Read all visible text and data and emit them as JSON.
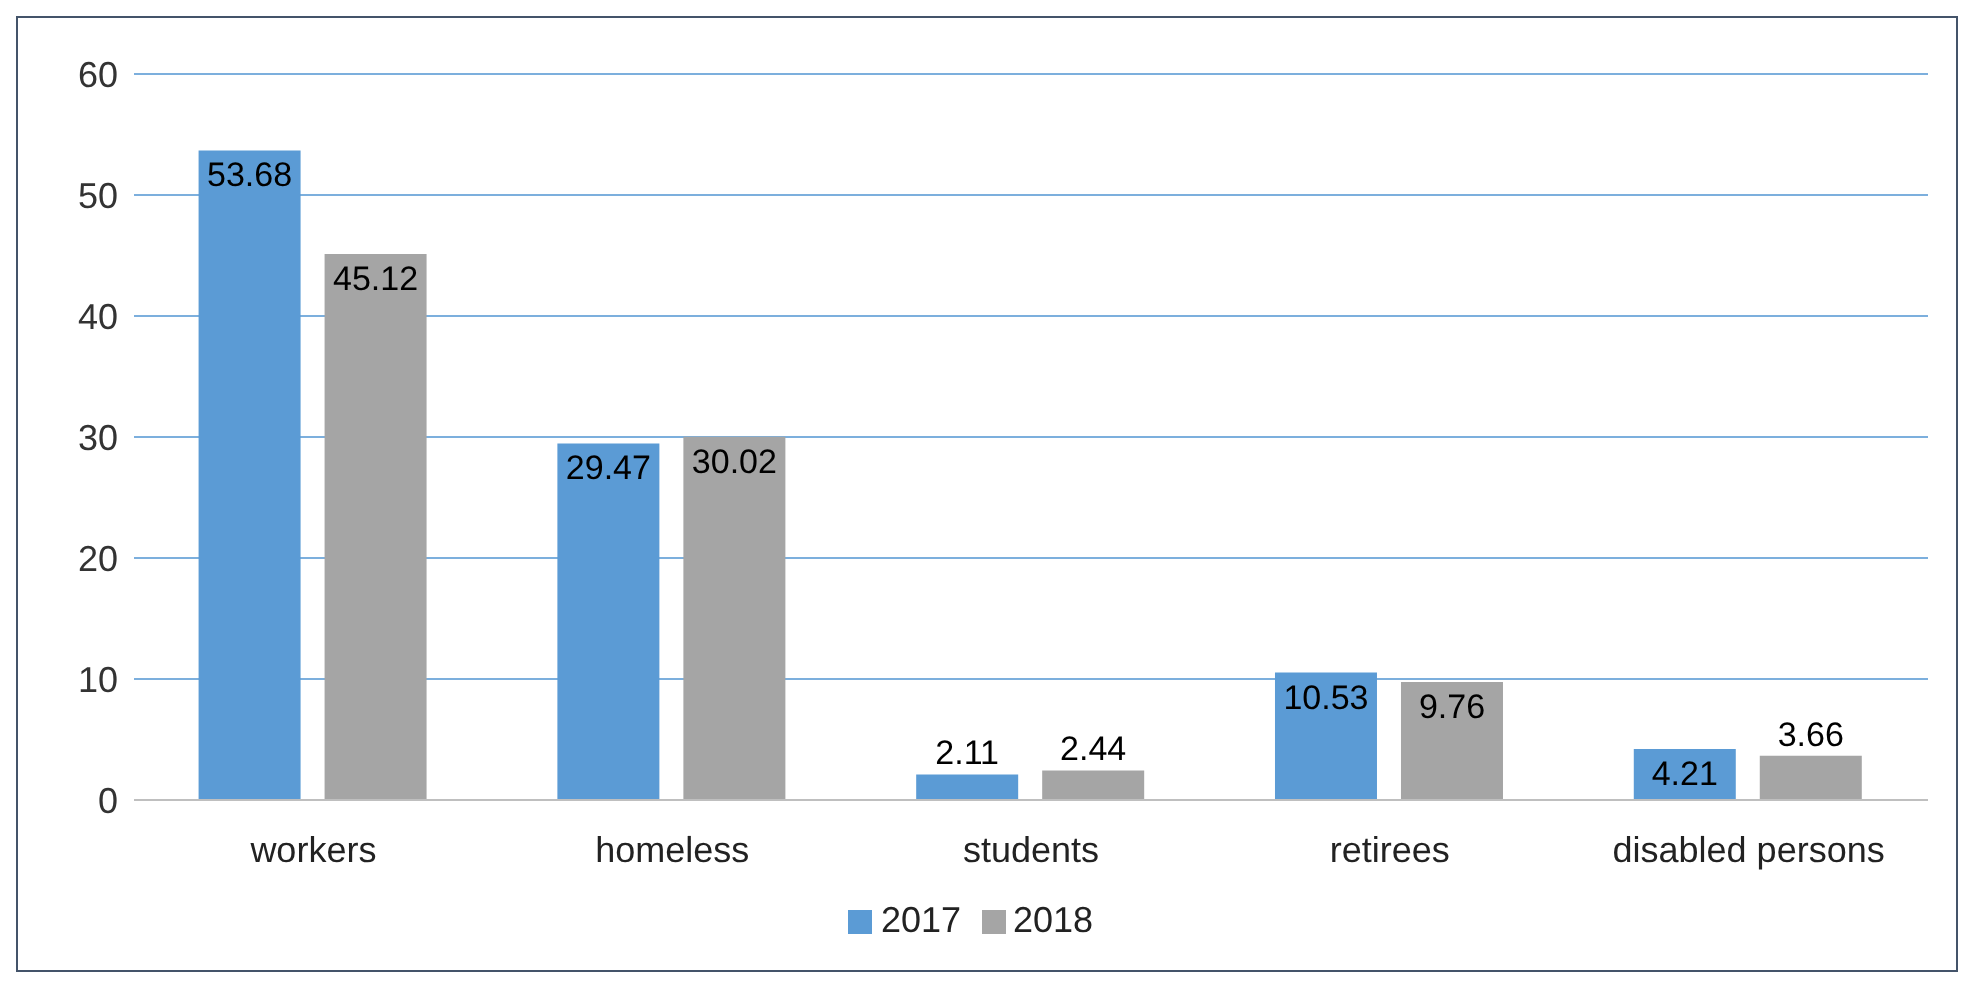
{
  "chart_data": {
    "type": "bar",
    "categories": [
      "workers",
      "homeless",
      "students",
      "retirees",
      "disabled persons"
    ],
    "series": [
      {
        "name": "2017",
        "color": "#5b9bd5",
        "values": [
          53.68,
          29.47,
          2.11,
          10.53,
          4.21
        ]
      },
      {
        "name": "2018",
        "color": "#a5a5a5",
        "values": [
          45.12,
          30.02,
          2.44,
          9.76,
          3.66
        ]
      }
    ],
    "ylim": [
      0,
      60
    ],
    "yticks": [
      0,
      10,
      20,
      30,
      40,
      50,
      60
    ],
    "grid": "y",
    "legend": "bottom",
    "data_labels": true
  }
}
